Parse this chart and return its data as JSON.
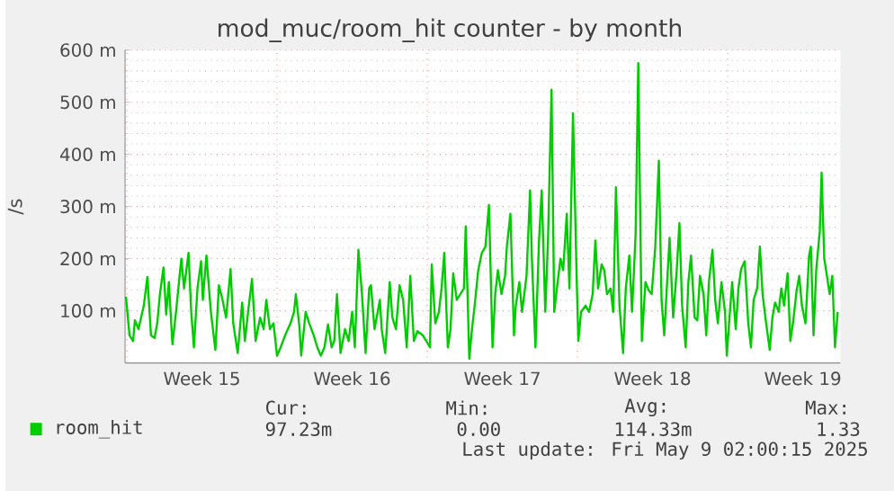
{
  "chart_data": {
    "type": "line",
    "title": "mod_muc/room_hit counter - by month",
    "ylabel": "/s",
    "xlim": [
      "2025-04-06T22:00",
      "2025-05-10T06:00"
    ],
    "ylim": [
      0,
      600
    ],
    "xticks": [
      {
        "value": "2025-04-07",
        "label": null
      },
      {
        "value": "2025-04-14",
        "label": null
      },
      {
        "value": "2025-04-21",
        "label": null
      },
      {
        "value": "2025-04-28",
        "label": null
      },
      {
        "value": "2025-05-05",
        "label": null
      },
      {
        "value": "2025-04-10T12:00",
        "label": "Week 15"
      },
      {
        "value": "2025-04-17T12:00",
        "label": "Week 16"
      },
      {
        "value": "2025-04-24T12:00",
        "label": "Week 17"
      },
      {
        "value": "2025-05-01T12:00",
        "label": "Week 18"
      },
      {
        "value": "2025-05-08T12:00",
        "label": "Week 19"
      }
    ],
    "yticks": [
      {
        "value": 100,
        "label": "100 m"
      },
      {
        "value": 200,
        "label": "200 m"
      },
      {
        "value": 300,
        "label": "300 m"
      },
      {
        "value": 400,
        "label": "400 m"
      },
      {
        "value": 500,
        "label": "500 m"
      },
      {
        "value": 600,
        "label": "600 m"
      }
    ],
    "grid": true,
    "legend": "bottom",
    "line_style": "solid",
    "annotations": [
      "Cur:",
      "97.23m",
      "Min:",
      "0.00",
      "Avg:",
      "114.33m",
      "Max:",
      "1.33",
      "Last update: Fri May  9 02:00:15 2025"
    ],
    "series": [
      {
        "name": "room_hit",
        "color": "#00cc00",
        "x": [
          "2025-04-06T23:00",
          "2025-04-07T03:00",
          "2025-04-07T07:00",
          "2025-04-07T09:00",
          "2025-04-07T13:00",
          "2025-04-07T19:00",
          "2025-04-07T23:00",
          "2025-04-08T03:00",
          "2025-04-08T07:00",
          "2025-04-08T10:00",
          "2025-04-08T13:00",
          "2025-04-08T17:00",
          "2025-04-08T20:00",
          "2025-04-08T23:00",
          "2025-04-09T03:00",
          "2025-04-09T07:00",
          "2025-04-09T11:00",
          "2025-04-09T13:00",
          "2025-04-09T16:00",
          "2025-04-09T21:00",
          "2025-04-10T00:00",
          "2025-04-10T03:00",
          "2025-04-10T07:00",
          "2025-04-10T11:00",
          "2025-04-10T13:00",
          "2025-04-10T17:00",
          "2025-04-10T22:00",
          "2025-04-11T03:00",
          "2025-04-11T07:00",
          "2025-04-11T11:00",
          "2025-04-11T15:00",
          "2025-04-11T20:00",
          "2025-04-11T23:00",
          "2025-04-12T04:00",
          "2025-04-12T09:00",
          "2025-04-12T12:00",
          "2025-04-12T16:00",
          "2025-04-12T20:00",
          "2025-04-13T00:00",
          "2025-04-13T05:00",
          "2025-04-13T09:00",
          "2025-04-13T12:00",
          "2025-04-13T16:00",
          "2025-04-13T20:00",
          "2025-04-14T00:00",
          "2025-04-14T04:00",
          "2025-04-14T09:00",
          "2025-04-14T15:00",
          "2025-04-14T19:00",
          "2025-04-14T21:00",
          "2025-04-15T01:00",
          "2025-04-15T03:00",
          "2025-04-15T08:00",
          "2025-04-15T12:00",
          "2025-04-15T17:00",
          "2025-04-15T21:00",
          "2025-04-16T01:00",
          "2025-04-16T05:00",
          "2025-04-16T09:00",
          "2025-04-16T13:00",
          "2025-04-16T16:00",
          "2025-04-16T19:00",
          "2025-04-16T23:00",
          "2025-04-17T04:00",
          "2025-04-17T08:00",
          "2025-04-17T12:00",
          "2025-04-17T15:00",
          "2025-04-17T19:00",
          "2025-04-17T23:00",
          "2025-04-18T03:00",
          "2025-04-18T07:00",
          "2025-04-18T09:00",
          "2025-04-18T13:00",
          "2025-04-18T19:00",
          "2025-04-18T21:00",
          "2025-04-19T01:00",
          "2025-04-19T06:00",
          "2025-04-19T09:00",
          "2025-04-19T13:00",
          "2025-04-19T17:00",
          "2025-04-19T21:00",
          "2025-04-20T01:00",
          "2025-04-20T05:00",
          "2025-04-20T09:00",
          "2025-04-20T13:00",
          "2025-04-20T19:00",
          "2025-04-20T23:00",
          "2025-04-21T03:00",
          "2025-04-21T05:00",
          "2025-04-21T09:00",
          "2025-04-21T13:00",
          "2025-04-21T16:00",
          "2025-04-21T19:00",
          "2025-04-21T23:00",
          "2025-04-22T02:00",
          "2025-04-22T05:00",
          "2025-04-22T09:00",
          "2025-04-22T13:00",
          "2025-04-22T17:00",
          "2025-04-22T19:00",
          "2025-04-22T23:00",
          "2025-04-23T02:00",
          "2025-04-23T05:00",
          "2025-04-23T09:00",
          "2025-04-23T13:00",
          "2025-04-23T17:00",
          "2025-04-23T21:00",
          "2025-04-24T01:00",
          "2025-04-24T04:00",
          "2025-04-24T07:00",
          "2025-04-24T11:00",
          "2025-04-24T15:00",
          "2025-04-24T17:00",
          "2025-04-24T21:00",
          "2025-04-25T01:00",
          "2025-04-25T03:00",
          "2025-04-25T07:00",
          "2025-04-25T10:00",
          "2025-04-25T15:00",
          "2025-04-25T19:00",
          "2025-04-25T21:00",
          "2025-04-26T01:00",
          "2025-04-26T05:00",
          "2025-04-26T08:00",
          "2025-04-26T12:00",
          "2025-04-26T15:00",
          "2025-04-26T19:00",
          "2025-04-26T22:00",
          "2025-04-27T01:00",
          "2025-04-27T05:00",
          "2025-04-27T08:00",
          "2025-04-27T12:00",
          "2025-04-27T15:00",
          "2025-04-27T19:00",
          "2025-04-27T23:00",
          "2025-04-28T01:00",
          "2025-04-28T04:00",
          "2025-04-28T09:00",
          "2025-04-28T13:00",
          "2025-04-28T17:00",
          "2025-04-28T20:00",
          "2025-04-28T23:00",
          "2025-04-29T03:00",
          "2025-04-29T06:00",
          "2025-04-29T09:00",
          "2025-04-29T13:00",
          "2025-04-29T16:00",
          "2025-04-29T19:00",
          "2025-04-29T23:00",
          "2025-04-30T03:00",
          "2025-04-30T06:00",
          "2025-04-30T10:00",
          "2025-04-30T13:00",
          "2025-04-30T17:00",
          "2025-04-30T20:00",
          "2025-05-01T00:00",
          "2025-05-01T04:00",
          "2025-05-01T08:00",
          "2025-05-01T11:00",
          "2025-05-01T15:00",
          "2025-05-01T19:00",
          "2025-05-01T22:00",
          "2025-05-02T01:00",
          "2025-05-02T05:00",
          "2025-05-02T07:00",
          "2025-05-02T11:00",
          "2025-05-02T15:00",
          "2025-05-02T18:00",
          "2025-05-02T21:00",
          "2025-05-03T01:00",
          "2025-05-03T04:00",
          "2025-05-03T07:00",
          "2025-05-03T11:00",
          "2025-05-03T14:00",
          "2025-05-03T17:00",
          "2025-05-03T21:00",
          "2025-05-04T00:00",
          "2025-05-04T03:00",
          "2025-05-04T07:00",
          "2025-05-04T10:00",
          "2025-05-04T13:00",
          "2025-05-04T17:00",
          "2025-05-04T21:00",
          "2025-05-04T23:00",
          "2025-05-05T02:00",
          "2025-05-05T05:00",
          "2025-05-05T09:00",
          "2025-05-05T12:00",
          "2025-05-05T15:00",
          "2025-05-05T19:00",
          "2025-05-05T23:00",
          "2025-05-06T02:00",
          "2025-05-06T05:00",
          "2025-05-06T09:00",
          "2025-05-06T12:00",
          "2025-05-06T15:00",
          "2025-05-06T19:00",
          "2025-05-06T23:00",
          "2025-05-07T02:00",
          "2025-05-07T05:00",
          "2025-05-07T09:00",
          "2025-05-07T12:00",
          "2025-05-07T15:00",
          "2025-05-07T19:00",
          "2025-05-07T22:00",
          "2025-05-08T01:00",
          "2025-05-08T05:00",
          "2025-05-08T08:00",
          "2025-05-08T11:00",
          "2025-05-08T15:00",
          "2025-05-08T19:00",
          "2025-05-08T21:00",
          "2025-05-09T00:00",
          "2025-05-09T03:00",
          "2025-05-09T07:00",
          "2025-05-09T09:00",
          "2025-05-09T12:00",
          "2025-05-09T15:00",
          "2025-05-09T18:00",
          "2025-05-09T21:00",
          "2025-05-10T00:00",
          "2025-05-10T03:00"
        ],
        "values": [
          127,
          53,
          42,
          82,
          65,
          110,
          165,
          53,
          48,
          76,
          132,
          183,
          93,
          155,
          36,
          98,
          167,
          200,
          143,
          211,
          98,
          30,
          143,
          195,
          121,
          206,
          98,
          25,
          149,
          121,
          87,
          180,
          76,
          19,
          116,
          42,
          104,
          161,
          42,
          87,
          65,
          121,
          65,
          76,
          14,
          30,
          53,
          76,
          98,
          132,
          70,
          14,
          98,
          76,
          53,
          30,
          14,
          30,
          74,
          30,
          42,
          132,
          19,
          65,
          42,
          98,
          30,
          217,
          132,
          19,
          143,
          149,
          65,
          121,
          65,
          19,
          155,
          87,
          65,
          149,
          121,
          30,
          167,
          42,
          61,
          53,
          42,
          30,
          189,
          76,
          98,
          143,
          211,
          30,
          65,
          172,
          121,
          132,
          143,
          262,
          8,
          65,
          110,
          178,
          211,
          223,
          303,
          30,
          132,
          178,
          132,
          167,
          223,
          286,
          53,
          110,
          155,
          98,
          167,
          331,
          200,
          30,
          235,
          331,
          98,
          235,
          524,
          98,
          143,
          200,
          178,
          286,
          143,
          479,
          167,
          42,
          98,
          110,
          98,
          132,
          235,
          143,
          189,
          178,
          132,
          143,
          98,
          337,
          110,
          19,
          143,
          206,
          98,
          246,
          575,
          42,
          155,
          138,
          132,
          223,
          388,
          121,
          53,
          178,
          240,
          87,
          178,
          268,
          110,
          30,
          155,
          206,
          87,
          82,
          167,
          132,
          53,
          155,
          217,
          121,
          76,
          155,
          98,
          14,
          87,
          155,
          65,
          143,
          180,
          195,
          76,
          30,
          121,
          143,
          223,
          132,
          76,
          25,
          87,
          116,
          98,
          143,
          110,
          172,
          42,
          76,
          138,
          167,
          110,
          76,
          206,
          223,
          53,
          178,
          253,
          365,
          200,
          167,
          132,
          167,
          30,
          98
        ]
      }
    ]
  }
}
